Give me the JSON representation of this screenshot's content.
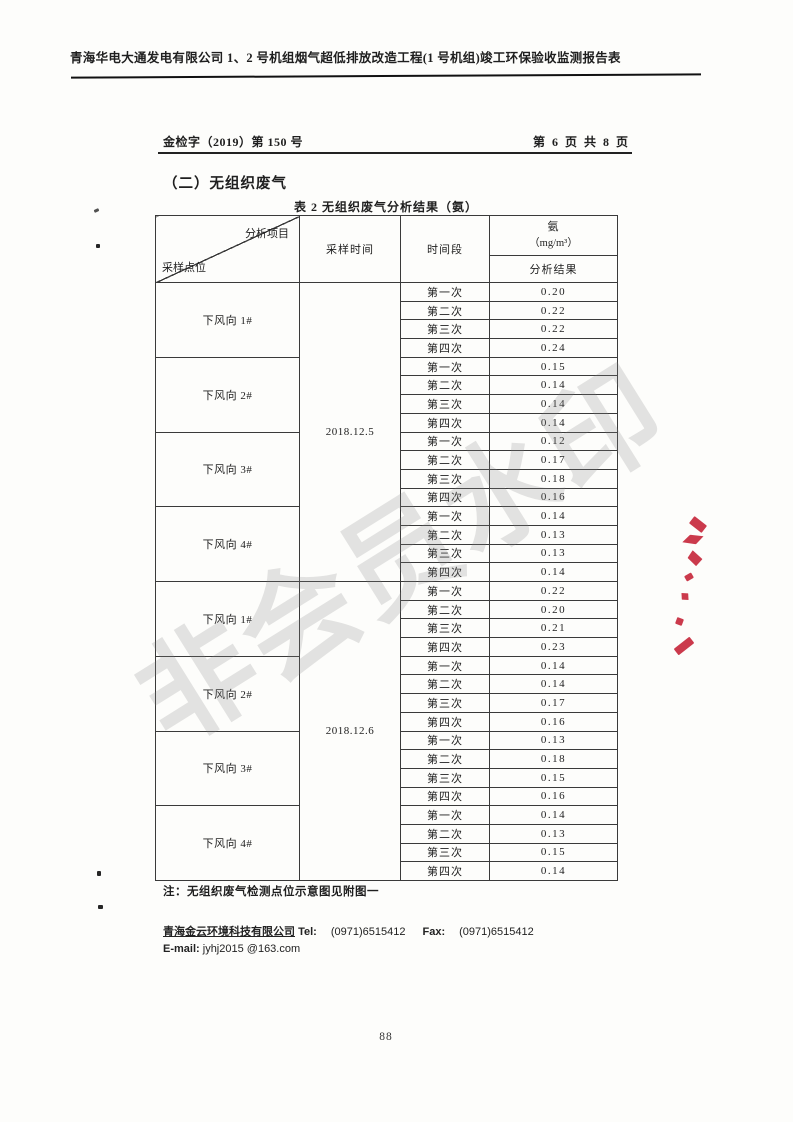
{
  "page_header": {
    "title": "青海华电大通发电有限公司 1、2 号机组烟气超低排放改造工程(1 号机组)竣工环保验收监测报告表"
  },
  "doc_info": {
    "doc_number": "金检字（2019）第 150 号",
    "page_info": "第 6 页 共 8 页"
  },
  "section": {
    "title": "（二）无组织废气"
  },
  "table": {
    "title": "表 2  无组织废气分析结果（氨）",
    "header": {
      "corner_top": "分析项目",
      "corner_bottom": "采样点位",
      "sampling_time": "采样时间",
      "time_period": "时间段",
      "analyte": "氨",
      "unit": "（mg/m³）",
      "result_label": "分析结果"
    },
    "periods": [
      "第一次",
      "第二次",
      "第三次",
      "第四次"
    ],
    "groups": [
      {
        "date": "2018.12.5",
        "points": [
          {
            "name": "下风向 1#",
            "values": [
              "0.20",
              "0.22",
              "0.22",
              "0.24"
            ]
          },
          {
            "name": "下风向 2#",
            "values": [
              "0.15",
              "0.14",
              "0.14",
              "0.14"
            ]
          },
          {
            "name": "下风向 3#",
            "values": [
              "0.12",
              "0.17",
              "0.18",
              "0.16"
            ]
          },
          {
            "name": "下风向 4#",
            "values": [
              "0.14",
              "0.13",
              "0.13",
              "0.14"
            ]
          }
        ]
      },
      {
        "date": "2018.12.6",
        "points": [
          {
            "name": "下风向 1#",
            "values": [
              "0.22",
              "0.20",
              "0.21",
              "0.23"
            ]
          },
          {
            "name": "下风向 2#",
            "values": [
              "0.14",
              "0.14",
              "0.17",
              "0.16"
            ]
          },
          {
            "name": "下风向 3#",
            "values": [
              "0.13",
              "0.18",
              "0.15",
              "0.16"
            ]
          },
          {
            "name": "下风向 4#",
            "values": [
              "0.14",
              "0.13",
              "0.15",
              "0.14"
            ]
          }
        ]
      }
    ],
    "note": "注：无组织废气检测点位示意图见附图一"
  },
  "footer": {
    "company": "青海金云环境科技有限公司",
    "tel_label": "Tel:",
    "tel": "(0971)6515412",
    "fax_label": "Fax:",
    "fax": "(0971)6515412",
    "email_label": "E-mail:",
    "email": "jyhj2015 @163.com",
    "page_number": "88"
  },
  "watermark": {
    "text": "非会员水印"
  },
  "seal": {
    "name": "red-seal-fragment",
    "color": "#c41f33"
  }
}
